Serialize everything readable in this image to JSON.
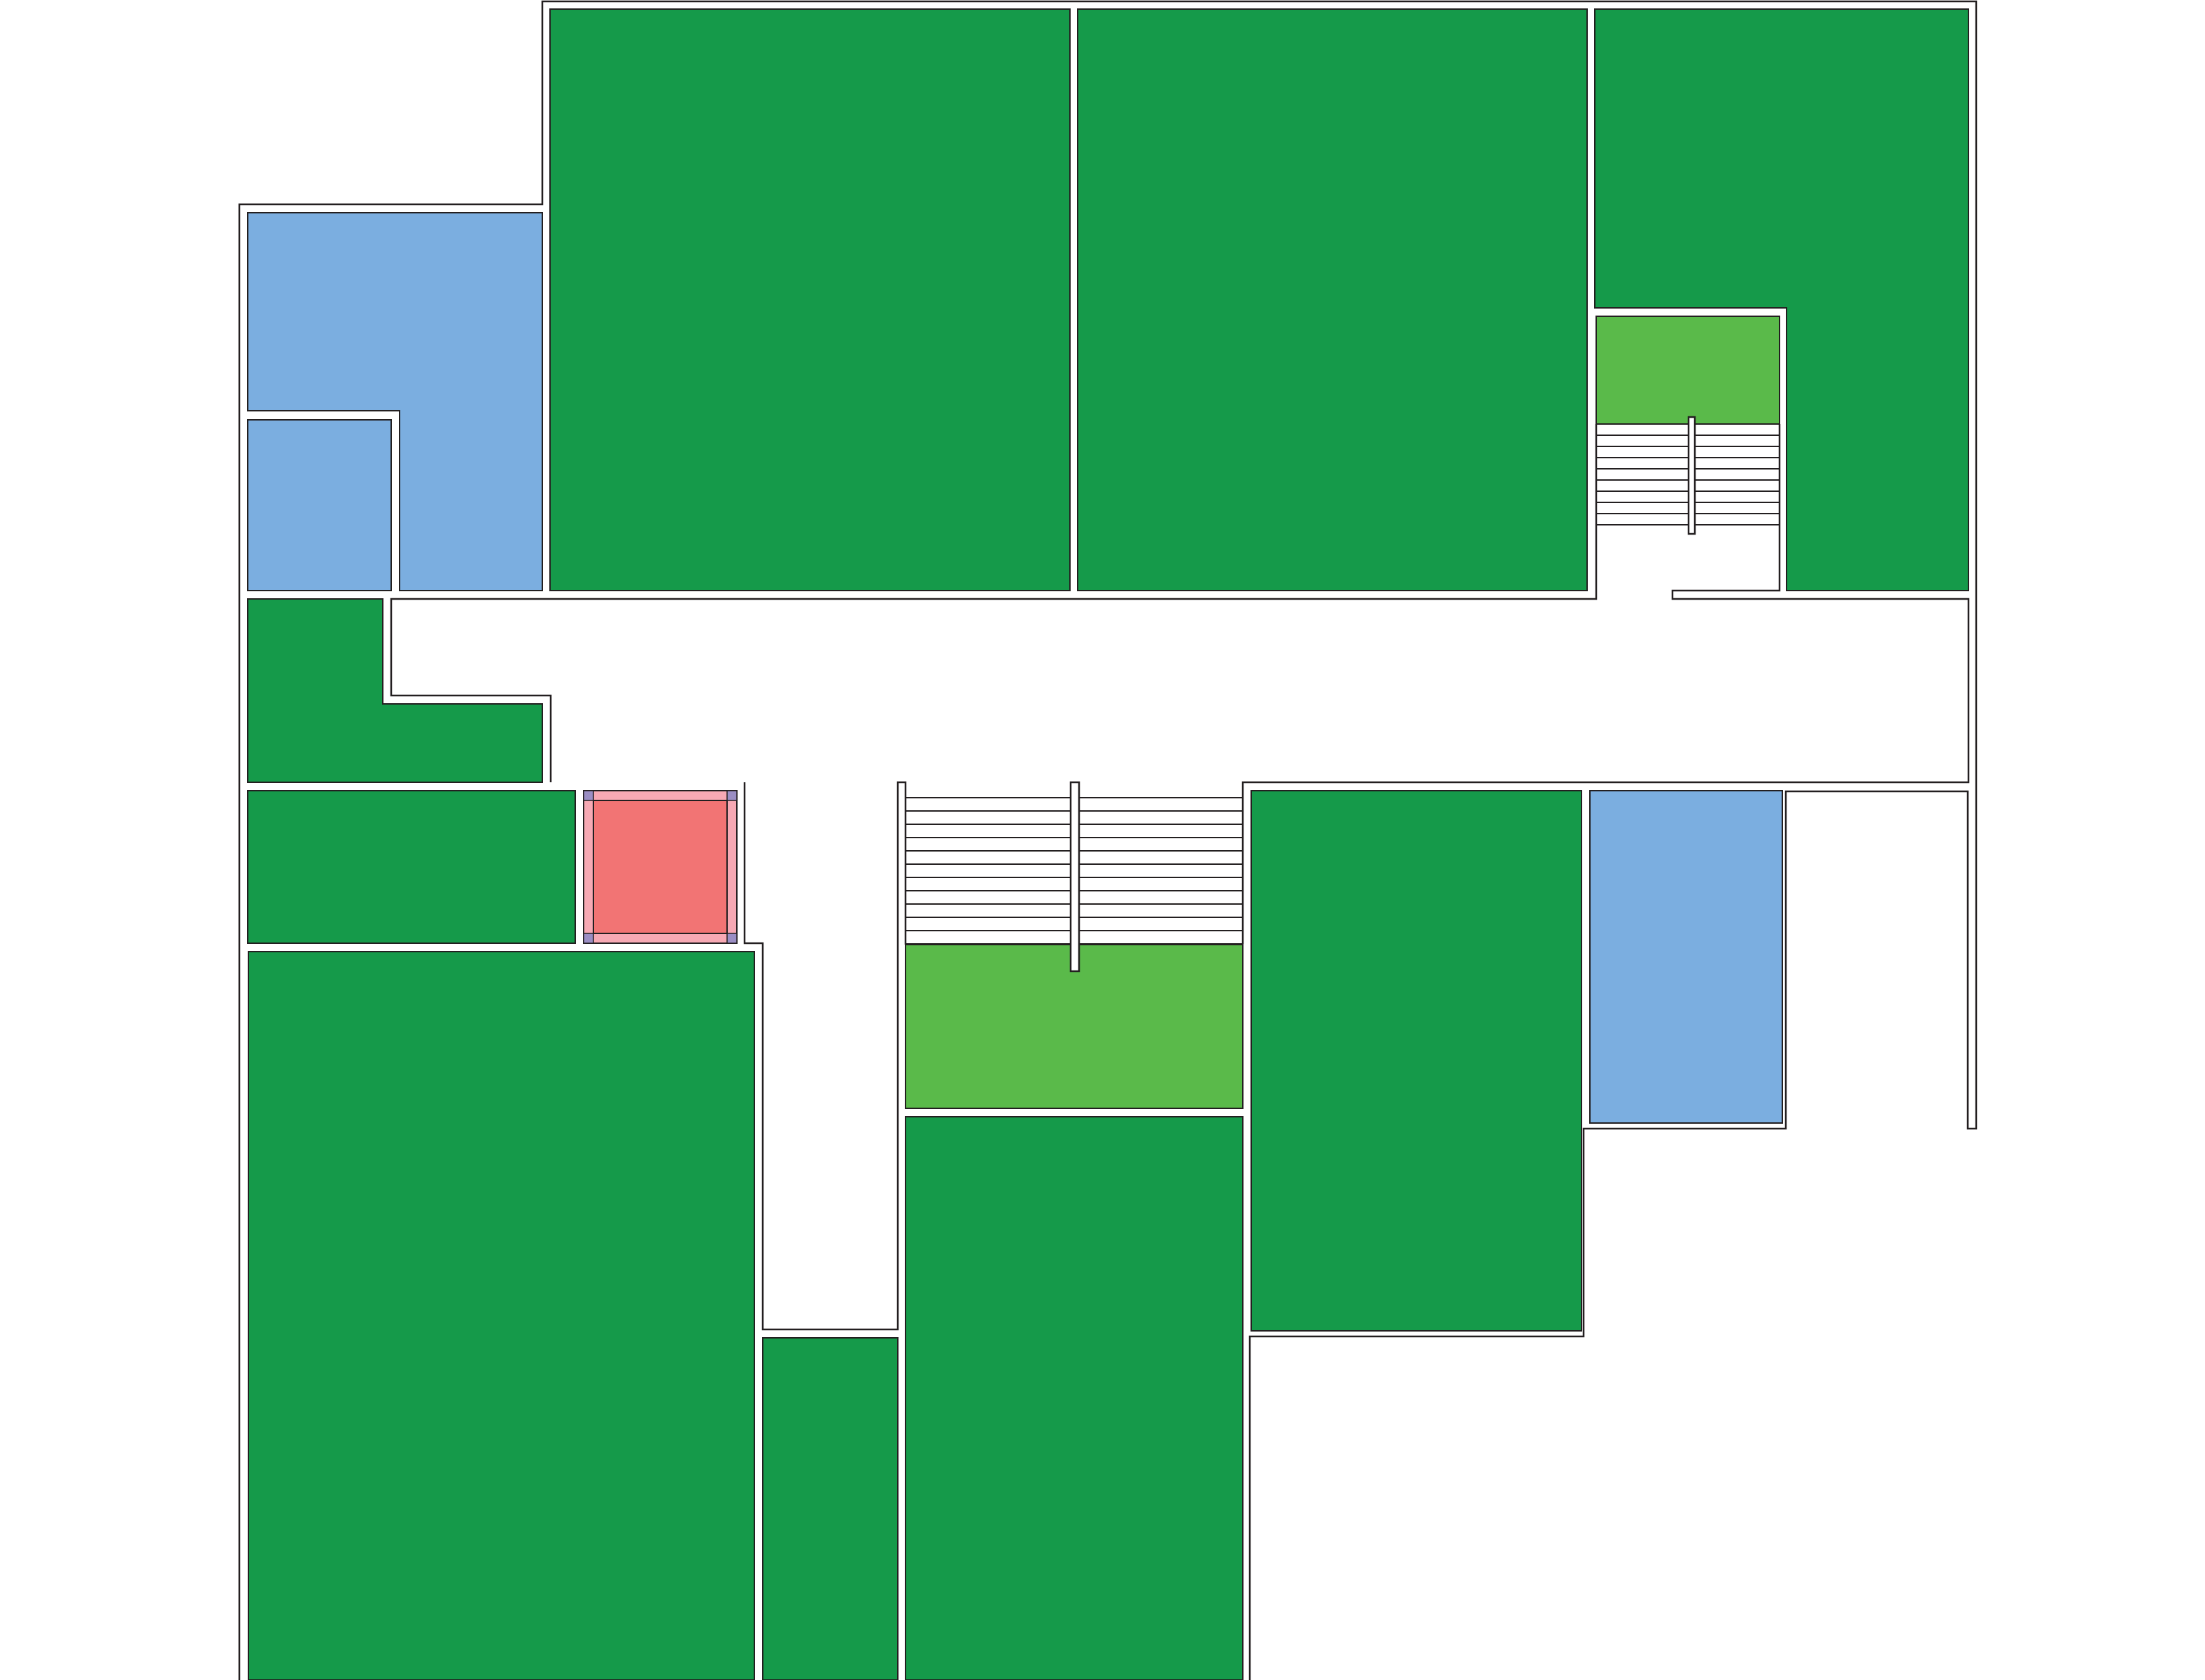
{
  "colors": {
    "background": "#ffffff",
    "outline": "#231f20",
    "room_green": "#159a4a",
    "landing_green": "#5aba4a",
    "room_blue": "#7baee0",
    "lift_red": "#f27474",
    "lift_pink": "#f7a9b4",
    "lift_corner": "#9b8ec4"
  },
  "legend": []
}
